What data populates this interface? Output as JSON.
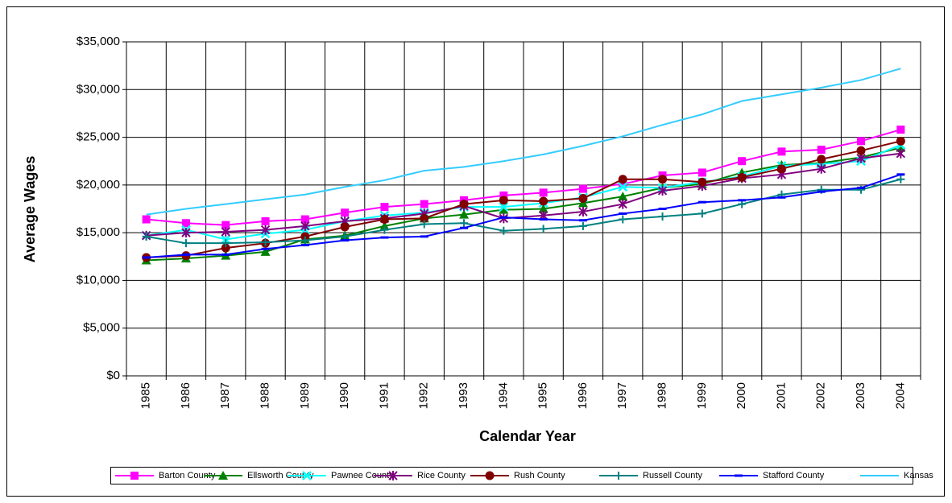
{
  "chart_data": {
    "type": "line",
    "x_label": "Calendar Year",
    "y_label": "Average Wages",
    "categories": [
      "1985",
      "1986",
      "1987",
      "1988",
      "1989",
      "1990",
      "1991",
      "1992",
      "1993",
      "1994",
      "1995",
      "1996",
      "1997",
      "1998",
      "1999",
      "2000",
      "2001",
      "2002",
      "2003",
      "2004"
    ],
    "ylim": [
      0,
      35000
    ],
    "yticks": [
      {
        "value": 0,
        "label": "$0"
      },
      {
        "value": 5000,
        "label": "$5,000"
      },
      {
        "value": 10000,
        "label": "$10,000"
      },
      {
        "value": 15000,
        "label": "$15,000"
      },
      {
        "value": 20000,
        "label": "$20,000"
      },
      {
        "value": 25000,
        "label": "$25,000"
      },
      {
        "value": 30000,
        "label": "$30,000"
      },
      {
        "value": 35000,
        "label": "$35,000"
      }
    ],
    "grid": true,
    "legend": "bottom",
    "series": [
      {
        "name": "Barton County",
        "color": "#ff00ff",
        "marker": "square",
        "values": [
          16400,
          16000,
          15800,
          16200,
          16400,
          17100,
          17700,
          18000,
          18400,
          18900,
          19200,
          19600,
          20100,
          21000,
          21300,
          22500,
          23500,
          23700,
          24600,
          25800
        ]
      },
      {
        "name": "Ellsworth County",
        "color": "#008000",
        "marker": "triangle",
        "values": [
          12100,
          12300,
          12600,
          13000,
          14300,
          14700,
          15700,
          16500,
          16900,
          17400,
          17500,
          18100,
          18800,
          19700,
          20100,
          21300,
          22100,
          22300,
          22900,
          23900
        ]
      },
      {
        "name": "Pawnee County",
        "color": "#00ffff",
        "marker": "x",
        "values": [
          14700,
          15300,
          14300,
          14900,
          15300,
          16200,
          16800,
          17100,
          17700,
          17700,
          18100,
          18700,
          19800,
          19700,
          20300,
          20900,
          22000,
          22200,
          22500,
          24200
        ]
      },
      {
        "name": "Rice County",
        "color": "#800080",
        "marker": "star",
        "values": [
          14700,
          15000,
          15100,
          15300,
          15700,
          16200,
          16500,
          17000,
          17800,
          16500,
          16800,
          17200,
          18000,
          19400,
          19900,
          20700,
          21100,
          21700,
          22800,
          23300
        ]
      },
      {
        "name": "Rush County",
        "color": "#800000",
        "marker": "circle",
        "values": [
          12400,
          12600,
          13400,
          13900,
          14600,
          15600,
          16400,
          16500,
          18000,
          18400,
          18300,
          18600,
          20600,
          20600,
          20300,
          20800,
          21700,
          22700,
          23600,
          24600
        ]
      },
      {
        "name": "Russell County",
        "color": "#008080",
        "marker": "plus",
        "values": [
          14600,
          13900,
          13900,
          14000,
          14200,
          14600,
          15300,
          15900,
          16000,
          15200,
          15400,
          15700,
          16400,
          16700,
          17000,
          18000,
          19000,
          19500,
          19500,
          20600
        ]
      },
      {
        "name": "Stafford County",
        "color": "#0000ff",
        "marker": "dash",
        "values": [
          12400,
          12700,
          12700,
          13300,
          13700,
          14200,
          14500,
          14600,
          15500,
          16600,
          16400,
          16300,
          17000,
          17500,
          18200,
          18400,
          18700,
          19300,
          19700,
          21100
        ]
      },
      {
        "name": "Kansas",
        "color": "#33ccff",
        "marker": "none",
        "values": [
          16900,
          17500,
          18000,
          18500,
          19000,
          19800,
          20500,
          21500,
          21900,
          22500,
          23200,
          24100,
          25100,
          26300,
          27400,
          28800,
          29500,
          30200,
          31000,
          32200
        ]
      }
    ]
  }
}
